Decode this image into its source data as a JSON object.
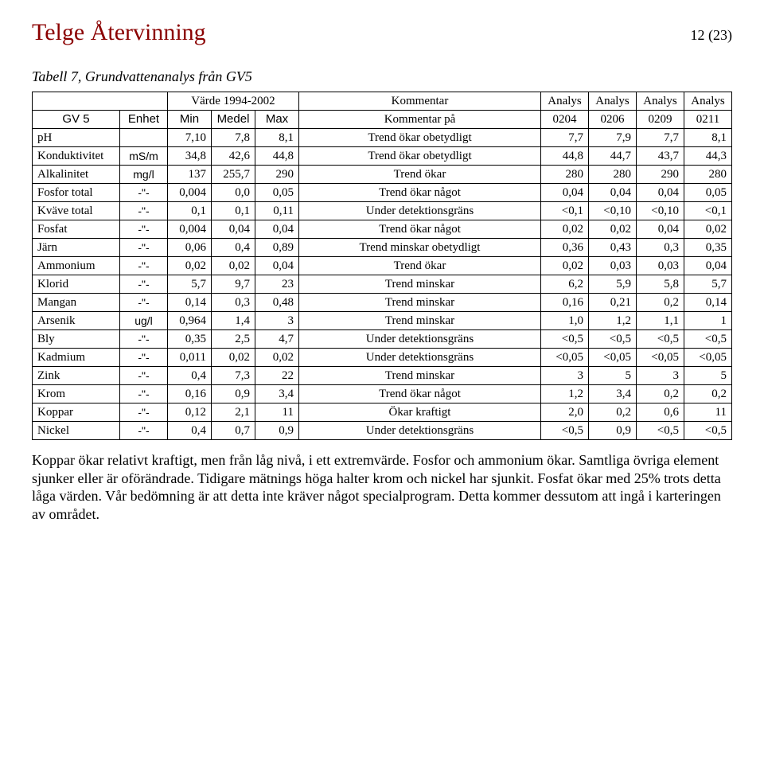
{
  "header": {
    "title": "Telge Återvinning",
    "page": "12 (23)"
  },
  "caption": "Tabell 7, Grundvattenanalys från GV5",
  "table": {
    "group_headers": {
      "blank": "",
      "varde": "Värde 1994-2002",
      "kommentar": "Kommentar",
      "analys1": "Analys",
      "analys2": "Analys",
      "analys3": "Analys",
      "analys4": "Analys"
    },
    "col_headers": {
      "c0": "GV 5",
      "c1": "Enhet",
      "c2": "Min",
      "c3": "Medel",
      "c4": "Max",
      "c5": "Kommentar på",
      "c6": "0204",
      "c7": "0206",
      "c8": "0209",
      "c9": "0211"
    },
    "rows": [
      {
        "p": "pH",
        "e": "",
        "min": "7,10",
        "med": "7,8",
        "max": "8,1",
        "k": "Trend ökar obetydligt",
        "a1": "7,7",
        "a2": "7,9",
        "a3": "7,7",
        "a4": "8,1"
      },
      {
        "p": "Konduktivitet",
        "e": "mS/m",
        "min": "34,8",
        "med": "42,6",
        "max": "44,8",
        "k": "Trend ökar obetydligt",
        "a1": "44,8",
        "a2": "44,7",
        "a3": "43,7",
        "a4": "44,3"
      },
      {
        "p": "Alkalinitet",
        "e": "mg/l",
        "min": "137",
        "med": "255,7",
        "max": "290",
        "k": "Trend ökar",
        "a1": "280",
        "a2": "280",
        "a3": "290",
        "a4": "280"
      },
      {
        "p": "Fosfor total",
        "e": "-\"-",
        "min": "0,004",
        "med": "0,0",
        "max": "0,05",
        "k": "Trend ökar något",
        "a1": "0,04",
        "a2": "0,04",
        "a3": "0,04",
        "a4": "0,05"
      },
      {
        "p": "Kväve total",
        "e": "-\"-",
        "min": "0,1",
        "med": "0,1",
        "max": "0,11",
        "k": "Under detektionsgräns",
        "a1": "<0,1",
        "a2": "<0,10",
        "a3": "<0,10",
        "a4": "<0,1"
      },
      {
        "p": "Fosfat",
        "e": "-\"-",
        "min": "0,004",
        "med": "0,04",
        "max": "0,04",
        "k": "Trend ökar något",
        "a1": "0,02",
        "a2": "0,02",
        "a3": "0,04",
        "a4": "0,02"
      },
      {
        "p": "Järn",
        "e": "-\"-",
        "min": "0,06",
        "med": "0,4",
        "max": "0,89",
        "k": "Trend minskar obetydligt",
        "a1": "0,36",
        "a2": "0,43",
        "a3": "0,3",
        "a4": "0,35"
      },
      {
        "p": "Ammonium",
        "e": "-\"-",
        "min": "0,02",
        "med": "0,02",
        "max": "0,04",
        "k": "Trend ökar",
        "a1": "0,02",
        "a2": "0,03",
        "a3": "0,03",
        "a4": "0,04"
      },
      {
        "p": "Klorid",
        "e": "-\"-",
        "min": "5,7",
        "med": "9,7",
        "max": "23",
        "k": "Trend minskar",
        "a1": "6,2",
        "a2": "5,9",
        "a3": "5,8",
        "a4": "5,7"
      },
      {
        "p": "Mangan",
        "e": "-\"-",
        "min": "0,14",
        "med": "0,3",
        "max": "0,48",
        "k": "Trend minskar",
        "a1": "0,16",
        "a2": "0,21",
        "a3": "0,2",
        "a4": "0,14"
      },
      {
        "p": "Arsenik",
        "e": "ug/l",
        "min": "0,964",
        "med": "1,4",
        "max": "3",
        "k": "Trend minskar",
        "a1": "1,0",
        "a2": "1,2",
        "a3": "1,1",
        "a4": "1"
      },
      {
        "p": "Bly",
        "e": "-\"-",
        "min": "0,35",
        "med": "2,5",
        "max": "4,7",
        "k": "Under detektionsgräns",
        "a1": "<0,5",
        "a2": "<0,5",
        "a3": "<0,5",
        "a4": "<0,5"
      },
      {
        "p": "Kadmium",
        "e": "-\"-",
        "min": "0,011",
        "med": "0,02",
        "max": "0,02",
        "k": "Under detektionsgräns",
        "a1": "<0,05",
        "a2": "<0,05",
        "a3": "<0,05",
        "a4": "<0,05"
      },
      {
        "p": "Zink",
        "e": "-\"-",
        "min": "0,4",
        "med": "7,3",
        "max": "22",
        "k": "Trend minskar",
        "a1": "3",
        "a2": "5",
        "a3": "3",
        "a4": "5"
      },
      {
        "p": "Krom",
        "e": "-\"-",
        "min": "0,16",
        "med": "0,9",
        "max": "3,4",
        "k": "Trend ökar något",
        "a1": "1,2",
        "a2": "3,4",
        "a3": "0,2",
        "a4": "0,2"
      },
      {
        "p": "Koppar",
        "e": "-\"-",
        "min": "0,12",
        "med": "2,1",
        "max": "11",
        "k": "Ökar kraftigt",
        "a1": "2,0",
        "a2": "0,2",
        "a3": "0,6",
        "a4": "11"
      },
      {
        "p": "Nickel",
        "e": "-\"-",
        "min": "0,4",
        "med": "0,7",
        "max": "0,9",
        "k": "Under detektionsgräns",
        "a1": "<0,5",
        "a2": "0,9",
        "a3": "<0,5",
        "a4": "<0,5"
      }
    ]
  },
  "paragraph": "Koppar ökar relativt kraftigt, men från låg nivå, i ett extremvärde. Fosfor och ammonium ökar. Samtliga övriga element sjunker eller är oförändrade. Tidigare mätnings höga halter krom och nickel har sjunkit. Fosfat ökar med 25% trots detta låga värden. Vår bedömning är att detta inte kräver något specialprogram. Detta kommer dessutom att ingå i karteringen av området."
}
